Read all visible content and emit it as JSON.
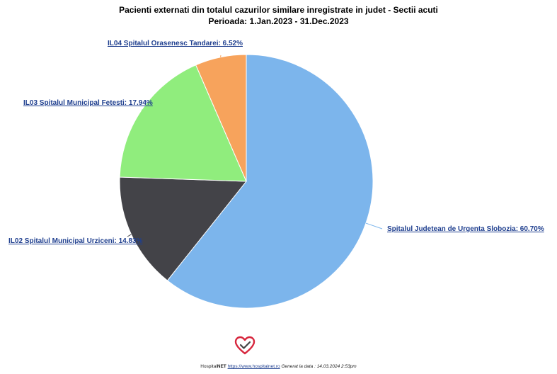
{
  "chart_data": {
    "type": "pie",
    "title": "Pacienti externati din totalul cazurilor similare inregistrate in judet - Sectii acuti",
    "subtitle": "Perioada: 1.Jan.2023 - 31.Dec.2023",
    "slices": [
      {
        "label": "Spitalul Judetean de Urgenta Slobozia: 60.70%",
        "value": 60.7,
        "color": "#7cb5ec"
      },
      {
        "label": "IL02 Spitalul Municipal Urziceni: 14.83%",
        "value": 14.83,
        "color": "#434348"
      },
      {
        "label": "IL03 Spitalul Municipal Fetesti: 17.94%",
        "value": 17.94,
        "color": "#90ed7d"
      },
      {
        "label": "IL04 Spitalul Orasenesc Tandarei: 6.52%",
        "value": 6.52,
        "color": "#f7a35c"
      }
    ]
  },
  "footer": {
    "brand_prefix": "Hospital",
    "brand_suffix": "NET",
    "url": "https://www.hospitalnet.ro",
    "generated": "Generat la data : 14.03.2024 2:53pm"
  },
  "logo": {
    "icon": "heart-check-icon",
    "color": "#d7263d"
  }
}
